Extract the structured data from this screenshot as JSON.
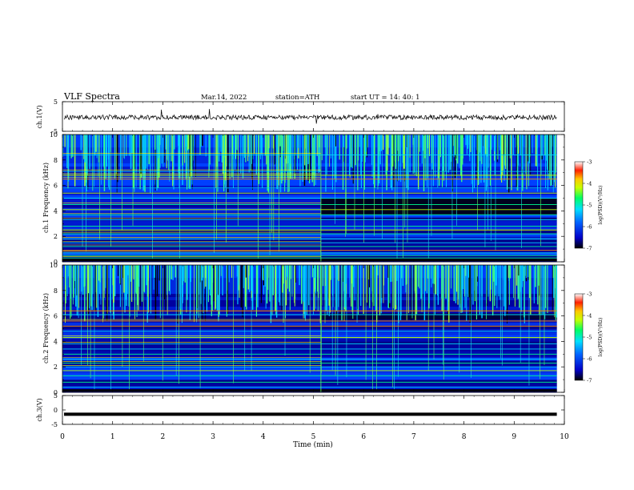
{
  "header": {
    "title": "VLF  Spectra",
    "date": "Mar.14, 2022",
    "station": "station=ATH",
    "start": "start  UT  =   14: 40: 1"
  },
  "chart_data": [
    {
      "type": "line",
      "panel": "ch1-waveform",
      "ylabel": "ch.1(V)",
      "yticks": [
        "5",
        "-5"
      ],
      "ylim": [
        -5,
        5
      ],
      "xlim": [
        0,
        10
      ],
      "trace_color": "#000000"
    },
    {
      "type": "heatmap",
      "panel": "ch1-spectrogram",
      "ylabel": "ch.1  Frequency  (kHz)",
      "yticks": [
        "0",
        "2",
        "4",
        "6",
        "8",
        "10"
      ],
      "ylim": [
        0,
        10
      ],
      "xlim": [
        0,
        9.85
      ],
      "colorbar": {
        "label": "log(PSD)(V²/Hz)",
        "ticks": [
          "-3",
          "-4",
          "-5",
          "-6",
          "-7"
        ],
        "range": [
          -7,
          -3
        ]
      },
      "narrowband_lines_khz": [
        0.3,
        0.5,
        0.7,
        0.9,
        1.2,
        1.5,
        1.8,
        2.2,
        2.5,
        2.8,
        3.3,
        3.7,
        4.1,
        4.5,
        5.0,
        5.4,
        5.8,
        6.5,
        6.8,
        7.1,
        8.4
      ]
    },
    {
      "type": "heatmap",
      "panel": "ch2-spectrogram",
      "ylabel": "ch.2  Frequency  (kHz)",
      "yticks": [
        "0",
        "2",
        "4",
        "6",
        "8",
        "10"
      ],
      "ylim": [
        0,
        10
      ],
      "xlim": [
        0,
        9.85
      ],
      "colorbar": {
        "label": "log(PSD)(V²/Hz)",
        "ticks": [
          "-3",
          "-4",
          "-5",
          "-6",
          "-7"
        ],
        "range": [
          -7,
          -3
        ]
      },
      "narrowband_lines_khz": [
        0.4,
        0.8,
        1.3,
        1.7,
        2.0,
        2.3,
        2.6,
        3.0,
        3.4,
        3.8,
        4.3,
        4.8,
        5.2,
        5.6,
        6.1,
        6.4
      ]
    },
    {
      "type": "line",
      "panel": "ch3-waveform",
      "ylabel": "ch.3(V)",
      "yticks": [
        "5",
        "0",
        "-5"
      ],
      "ylim": [
        -5,
        5
      ],
      "xlim": [
        0,
        10
      ],
      "trace_value": -1.5,
      "trace_color": "#000000"
    }
  ],
  "xaxis": {
    "label": "Time  (min)",
    "ticks": [
      "0",
      "1",
      "2",
      "3",
      "4",
      "5",
      "6",
      "7",
      "8",
      "9",
      "10"
    ],
    "range": [
      0,
      10
    ]
  },
  "colors": {
    "colormap": [
      "#0a0030",
      "#0000b4",
      "#0050ff",
      "#00c8ff",
      "#00ff96",
      "#a0ff00",
      "#ffff00",
      "#ff8000",
      "#ff0000",
      "#ffffff"
    ]
  }
}
